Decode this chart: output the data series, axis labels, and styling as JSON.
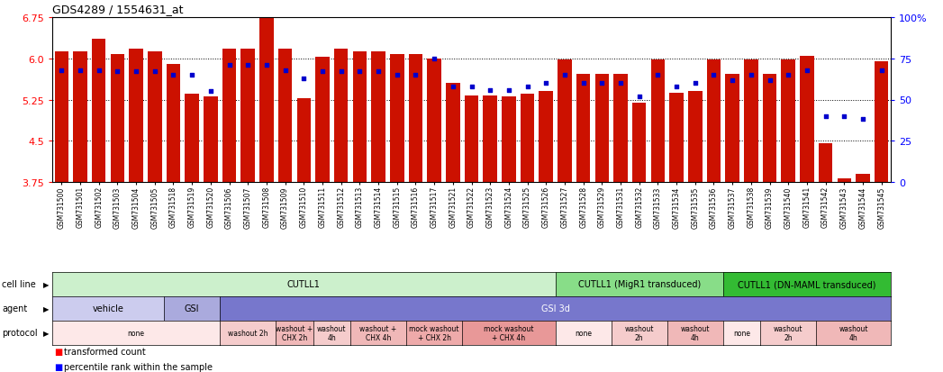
{
  "title": "GDS4289 / 1554631_at",
  "samples": [
    "GSM731500",
    "GSM731501",
    "GSM731502",
    "GSM731503",
    "GSM731504",
    "GSM731505",
    "GSM731518",
    "GSM731519",
    "GSM731520",
    "GSM731506",
    "GSM731507",
    "GSM731508",
    "GSM731509",
    "GSM731510",
    "GSM731511",
    "GSM731512",
    "GSM731513",
    "GSM731514",
    "GSM731515",
    "GSM731516",
    "GSM731517",
    "GSM731521",
    "GSM731522",
    "GSM731523",
    "GSM731524",
    "GSM731525",
    "GSM731526",
    "GSM731527",
    "GSM731528",
    "GSM731529",
    "GSM731531",
    "GSM731532",
    "GSM731533",
    "GSM731534",
    "GSM731535",
    "GSM731536",
    "GSM731537",
    "GSM731538",
    "GSM731539",
    "GSM731540",
    "GSM731541",
    "GSM731542",
    "GSM731543",
    "GSM731544",
    "GSM731545"
  ],
  "bar_values": [
    6.12,
    6.12,
    6.35,
    6.07,
    6.17,
    6.12,
    5.9,
    5.36,
    5.3,
    6.17,
    6.17,
    6.75,
    6.17,
    5.27,
    6.03,
    6.17,
    6.12,
    6.12,
    6.07,
    6.07,
    6.0,
    5.55,
    5.32,
    5.32,
    5.3,
    5.36,
    5.4,
    5.98,
    5.72,
    5.72,
    5.72,
    5.2,
    5.98,
    5.38,
    5.4,
    5.98,
    5.72,
    5.98,
    5.72,
    5.98,
    6.05,
    4.45,
    3.82,
    3.9,
    5.95
  ],
  "percentile_values": [
    68,
    68,
    68,
    67,
    67,
    67,
    65,
    65,
    55,
    71,
    71,
    71,
    68,
    63,
    67,
    67,
    67,
    67,
    65,
    65,
    75,
    58,
    58,
    56,
    56,
    58,
    60,
    65,
    60,
    60,
    60,
    52,
    65,
    58,
    60,
    65,
    62,
    65,
    62,
    65,
    68,
    40,
    40,
    38,
    68
  ],
  "ylim_left": [
    3.75,
    6.75
  ],
  "ylim_right": [
    0,
    100
  ],
  "yticks_left": [
    3.75,
    4.5,
    5.25,
    6.0,
    6.75
  ],
  "yticks_right": [
    0,
    25,
    50,
    75,
    100
  ],
  "bar_color": "#cc1100",
  "dot_color": "#0000cc",
  "cell_line_groups": [
    {
      "label": "CUTLL1",
      "start": 0,
      "end": 27,
      "color": "#ccf0cc"
    },
    {
      "label": "CUTLL1 (MigR1 transduced)",
      "start": 27,
      "end": 36,
      "color": "#88dd88"
    },
    {
      "label": "CUTLL1 (DN-MAML transduced)",
      "start": 36,
      "end": 45,
      "color": "#33bb33"
    }
  ],
  "agent_groups": [
    {
      "label": "vehicle",
      "start": 0,
      "end": 6,
      "color": "#ccccee"
    },
    {
      "label": "GSI",
      "start": 6,
      "end": 9,
      "color": "#aaaadd"
    },
    {
      "label": "GSI 3d",
      "start": 9,
      "end": 45,
      "color": "#7777cc"
    }
  ],
  "protocol_groups": [
    {
      "label": "none",
      "start": 0,
      "end": 9,
      "color": "#fde8e8"
    },
    {
      "label": "washout 2h",
      "start": 9,
      "end": 12,
      "color": "#f5cccc"
    },
    {
      "label": "washout +\nCHX 2h",
      "start": 12,
      "end": 14,
      "color": "#f0b8b8"
    },
    {
      "label": "washout\n4h",
      "start": 14,
      "end": 16,
      "color": "#f5cccc"
    },
    {
      "label": "washout +\nCHX 4h",
      "start": 16,
      "end": 19,
      "color": "#f0b8b8"
    },
    {
      "label": "mock washout\n+ CHX 2h",
      "start": 19,
      "end": 22,
      "color": "#eeaaaa"
    },
    {
      "label": "mock washout\n+ CHX 4h",
      "start": 22,
      "end": 27,
      "color": "#e89898"
    },
    {
      "label": "none",
      "start": 27,
      "end": 30,
      "color": "#fde8e8"
    },
    {
      "label": "washout\n2h",
      "start": 30,
      "end": 33,
      "color": "#f5cccc"
    },
    {
      "label": "washout\n4h",
      "start": 33,
      "end": 36,
      "color": "#f0b8b8"
    },
    {
      "label": "none",
      "start": 36,
      "end": 38,
      "color": "#fde8e8"
    },
    {
      "label": "washout\n2h",
      "start": 38,
      "end": 41,
      "color": "#f5cccc"
    },
    {
      "label": "washout\n4h",
      "start": 41,
      "end": 45,
      "color": "#f0b8b8"
    }
  ]
}
